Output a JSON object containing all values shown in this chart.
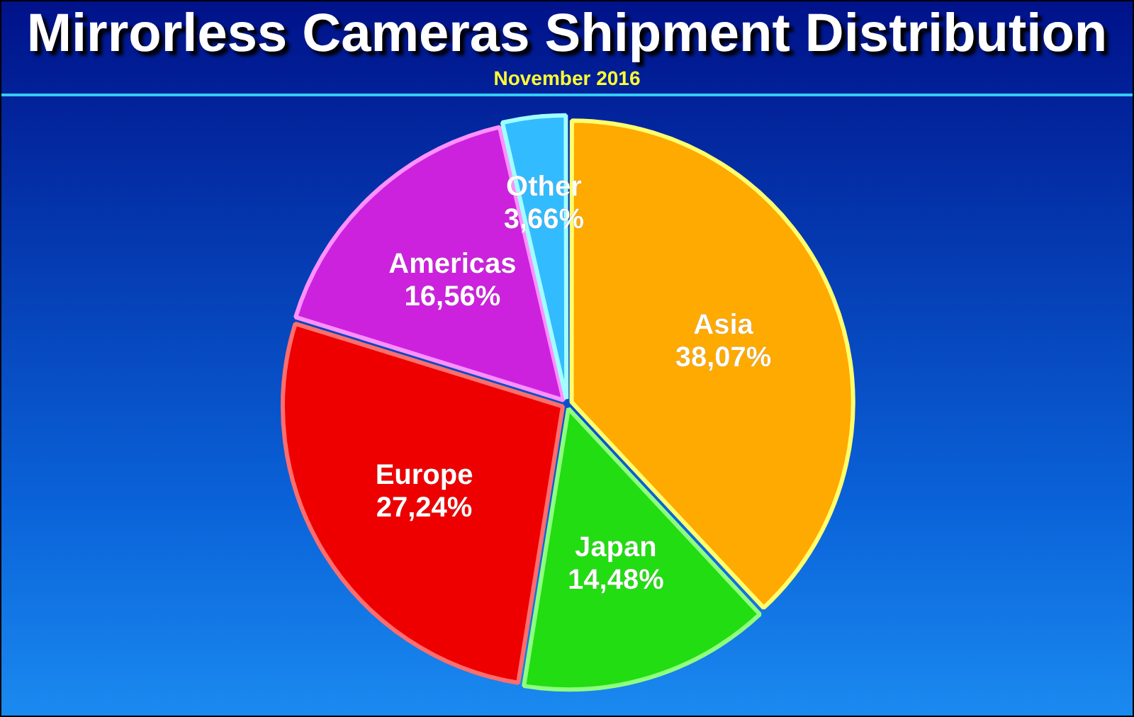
{
  "chart_data": {
    "type": "pie",
    "title": "Mirrorless Cameras Shipment Distribution",
    "subtitle": "November 2016",
    "categories": [
      "Asia",
      "Japan",
      "Europe",
      "Americas",
      "Other"
    ],
    "values": [
      38.07,
      14.48,
      27.24,
      16.56,
      3.66
    ],
    "value_labels": [
      "38,07%",
      "14,48%",
      "27,24%",
      "16,56%",
      "3,66%"
    ],
    "colors": [
      "#ffaa00",
      "#22dd11",
      "#ee0000",
      "#cc22dd",
      "#33bbff"
    ],
    "legend": false
  }
}
